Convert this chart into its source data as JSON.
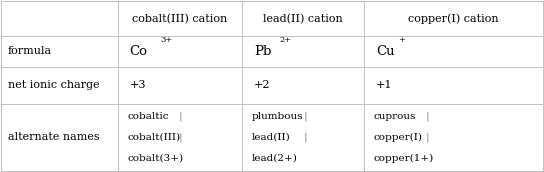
{
  "col_headers": [
    "cobalt(III) cation",
    "lead(II) cation",
    "copper(I) cation"
  ],
  "row_headers": [
    "formula",
    "net ionic charge",
    "alternate names"
  ],
  "formula_row": [
    {
      "base": "Co",
      "sup": "3+"
    },
    {
      "base": "Pb",
      "sup": "2+"
    },
    {
      "base": "Cu",
      "sup": "+"
    }
  ],
  "charge_row": [
    "+3",
    "+2",
    "+1"
  ],
  "alt_names_row": [
    [
      "cobaltic",
      "cobalt(III)",
      "cobalt(3+)"
    ],
    [
      "plumbous",
      "lead(II)",
      "lead(2+)"
    ],
    [
      "cuprous",
      "copper(I)",
      "copper(1+)"
    ]
  ],
  "bg_color": "#ffffff",
  "grid_color": "#c0c0c0",
  "text_color": "#000000",
  "font_size": 8.0,
  "sup_font_size": 6.0,
  "col_bounds": [
    0.0,
    0.215,
    0.445,
    0.67,
    1.0
  ],
  "row_bounds": [
    1.0,
    0.795,
    0.615,
    0.395,
    0.0
  ]
}
